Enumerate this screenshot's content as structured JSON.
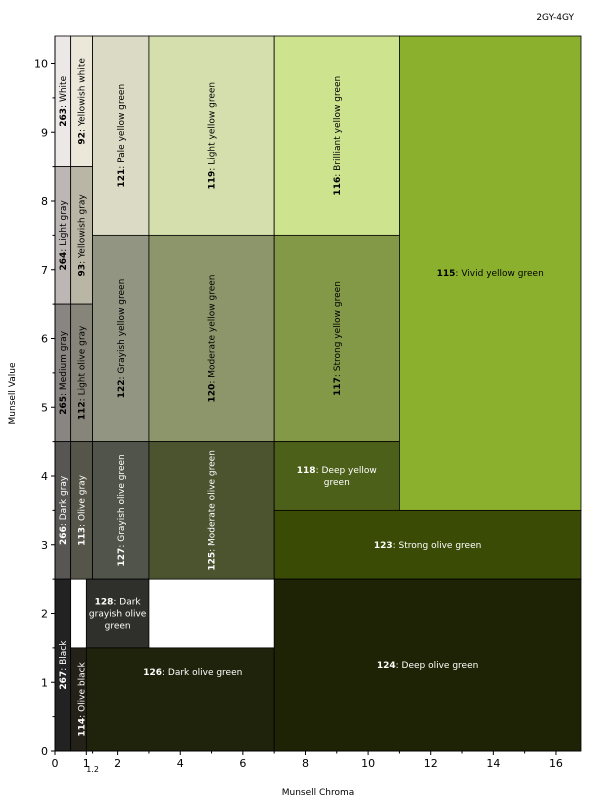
{
  "hue_label": "2GY-4GY",
  "chart_data": {
    "type": "table",
    "title": "",
    "xlabel": "Munsell Chroma",
    "ylabel": "Munsell Value",
    "xlim": [
      0,
      16.8
    ],
    "ylim": [
      0,
      10.4
    ],
    "x_ticks": [
      0,
      1,
      2,
      4,
      6,
      8,
      10,
      12,
      14,
      16
    ],
    "x_tick_note": "1.2",
    "y_ticks": [
      0,
      1,
      2,
      3,
      4,
      5,
      6,
      7,
      8,
      9,
      10
    ],
    "regions": [
      {
        "num": "263",
        "name": "White",
        "c": [
          0,
          0.5
        ],
        "v": [
          8.5,
          10.4
        ],
        "color": "#ece8e7",
        "vertical": true
      },
      {
        "num": "92",
        "name": "Yellowish white",
        "c": [
          0.5,
          1.2
        ],
        "v": [
          8.5,
          10.4
        ],
        "color": "#ebe8da",
        "vertical": true
      },
      {
        "num": "264",
        "name": "Light gray",
        "c": [
          0,
          0.5
        ],
        "v": [
          6.5,
          8.5
        ],
        "color": "#bcb6b4",
        "vertical": true
      },
      {
        "num": "93",
        "name": "Yellowish gray",
        "c": [
          0.5,
          1.2
        ],
        "v": [
          6.5,
          8.5
        ],
        "color": "#bab6a5",
        "vertical": true
      },
      {
        "num": "265",
        "name": "Medium gray",
        "c": [
          0,
          0.5
        ],
        "v": [
          4.5,
          6.5
        ],
        "color": "#898583",
        "vertical": true
      },
      {
        "num": "112",
        "name": "Light olive gray",
        "c": [
          0.5,
          1.2
        ],
        "v": [
          4.5,
          6.5
        ],
        "color": "#87857a",
        "vertical": true
      },
      {
        "num": "266",
        "name": "Dark gray",
        "c": [
          0,
          0.5
        ],
        "v": [
          2.5,
          4.5
        ],
        "color": "#575655",
        "vertical": true,
        "light": true
      },
      {
        "num": "113",
        "name": "Olive gray",
        "c": [
          0.5,
          1.2
        ],
        "v": [
          2.5,
          4.5
        ],
        "color": "#565549",
        "vertical": true,
        "light": true
      },
      {
        "num": "267",
        "name": "Black",
        "c": [
          0,
          0.5
        ],
        "v": [
          0,
          2.5
        ],
        "color": "#222222",
        "vertical": true,
        "light": true
      },
      {
        "num": "114",
        "name": "Olive black",
        "c": [
          0.5,
          1.2
        ],
        "v": [
          0,
          1.5
        ],
        "color": "#232118",
        "vertical": true,
        "light": true
      },
      {
        "num": "121",
        "name": "Pale yellow green",
        "c": [
          1.2,
          3
        ],
        "v": [
          7.5,
          10.4
        ],
        "color": "#dbdbc5",
        "vertical": true
      },
      {
        "num": "122",
        "name": "Grayish yellow green",
        "c": [
          1.2,
          3
        ],
        "v": [
          4.5,
          7.5
        ],
        "color": "#919582",
        "vertical": true
      },
      {
        "num": "127",
        "name": "Grayish olive green",
        "c": [
          1.2,
          3
        ],
        "v": [
          2.5,
          4.5
        ],
        "color": "#51544a",
        "vertical": true,
        "light": true
      },
      {
        "num": "119",
        "name": "Light yellow green",
        "c": [
          3,
          7
        ],
        "v": [
          7.5,
          10.4
        ],
        "color": "#d4dfad",
        "vertical": true
      },
      {
        "num": "120",
        "name": "Moderate yellow green",
        "c": [
          3,
          7
        ],
        "v": [
          4.5,
          7.5
        ],
        "color": "#8d966a",
        "vertical": true
      },
      {
        "num": "125",
        "name": "Moderate olive green",
        "c": [
          3,
          7
        ],
        "v": [
          2.5,
          4.5
        ],
        "color": "#4b532f",
        "vertical": true,
        "light": true
      },
      {
        "num": "128",
        "name": "Dark grayish olive green",
        "c": [
          1,
          3
        ],
        "v": [
          1.5,
          2.5
        ],
        "color": "#2f302b",
        "lines": [
          "{num}: Dark",
          "grayish olive",
          "green"
        ],
        "light": true
      },
      {
        "num": "126",
        "name": "Dark olive green",
        "c": [
          1,
          7
        ],
        "v": [
          0,
          1.5
        ],
        "color": "#20230c",
        "light": true,
        "label_c": 4.4,
        "label_v": 1.15
      },
      {
        "num": "116",
        "name": "Brilliant yellow green",
        "c": [
          7,
          11
        ],
        "v": [
          7.5,
          10.4
        ],
        "color": "#cee38e",
        "vertical": true
      },
      {
        "num": "117",
        "name": "Strong yellow green",
        "c": [
          7,
          11
        ],
        "v": [
          4.5,
          7.5
        ],
        "color": "#839948",
        "vertical": true
      },
      {
        "num": "118",
        "name": "Deep yellow green",
        "c": [
          7,
          11
        ],
        "v": [
          3.5,
          4.5
        ],
        "color": "#4d6019",
        "lines": [
          "{num}: Deep yellow",
          "green"
        ],
        "light": true
      },
      {
        "num": "115",
        "name": "Vivid yellow green",
        "c": [
          11,
          16.8
        ],
        "v": [
          3.5,
          10.4
        ],
        "color": "#8bb02e"
      },
      {
        "num": "123",
        "name": "Strong olive green",
        "c": [
          7,
          16.8
        ],
        "v": [
          2.5,
          3.5
        ],
        "color": "#3a4b05",
        "light": true
      },
      {
        "num": "124",
        "name": "Deep olive green",
        "c": [
          7,
          16.8
        ],
        "v": [
          0,
          2.5
        ],
        "color": "#1f2305",
        "light": true,
        "label_v": 1.25
      }
    ]
  }
}
